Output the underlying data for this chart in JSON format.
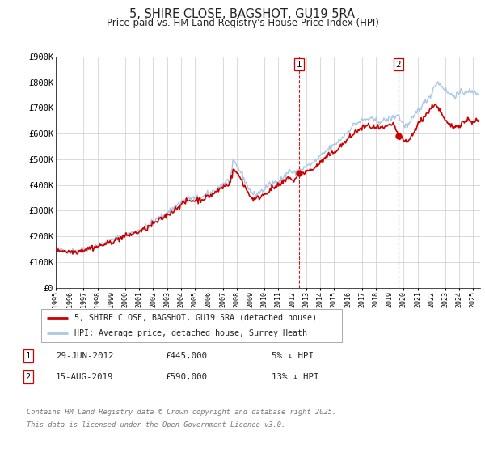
{
  "title": "5, SHIRE CLOSE, BAGSHOT, GU19 5RA",
  "subtitle": "Price paid vs. HM Land Registry's House Price Index (HPI)",
  "ylim": [
    0,
    900000
  ],
  "yticks": [
    0,
    100000,
    200000,
    300000,
    400000,
    500000,
    600000,
    700000,
    800000,
    900000
  ],
  "ytick_labels": [
    "£0",
    "£100K",
    "£200K",
    "£300K",
    "£400K",
    "£500K",
    "£600K",
    "£700K",
    "£800K",
    "£900K"
  ],
  "xlim_start": 1995.0,
  "xlim_end": 2025.5,
  "hpi_color": "#a8c8e8",
  "price_color": "#cc0000",
  "marker1_date": 2012.497,
  "marker1_price": 445000,
  "marker1_label": "1",
  "marker2_date": 2019.619,
  "marker2_price": 590000,
  "marker2_label": "2",
  "legend_label1": "5, SHIRE CLOSE, BAGSHOT, GU19 5RA (detached house)",
  "legend_label2": "HPI: Average price, detached house, Surrey Heath",
  "footnote_line1": "Contains HM Land Registry data © Crown copyright and database right 2025.",
  "footnote_line2": "This data is licensed under the Open Government Licence v3.0.",
  "plot_bg_color": "#ffffff",
  "grid_color": "#cccccc",
  "hpi_linewidth": 1.0,
  "price_linewidth": 1.2,
  "anno1_date": "29-JUN-2012",
  "anno1_price": "£445,000",
  "anno1_pct": "5% ↓ HPI",
  "anno2_date": "15-AUG-2019",
  "anno2_price": "£590,000",
  "anno2_pct": "13% ↓ HPI"
}
